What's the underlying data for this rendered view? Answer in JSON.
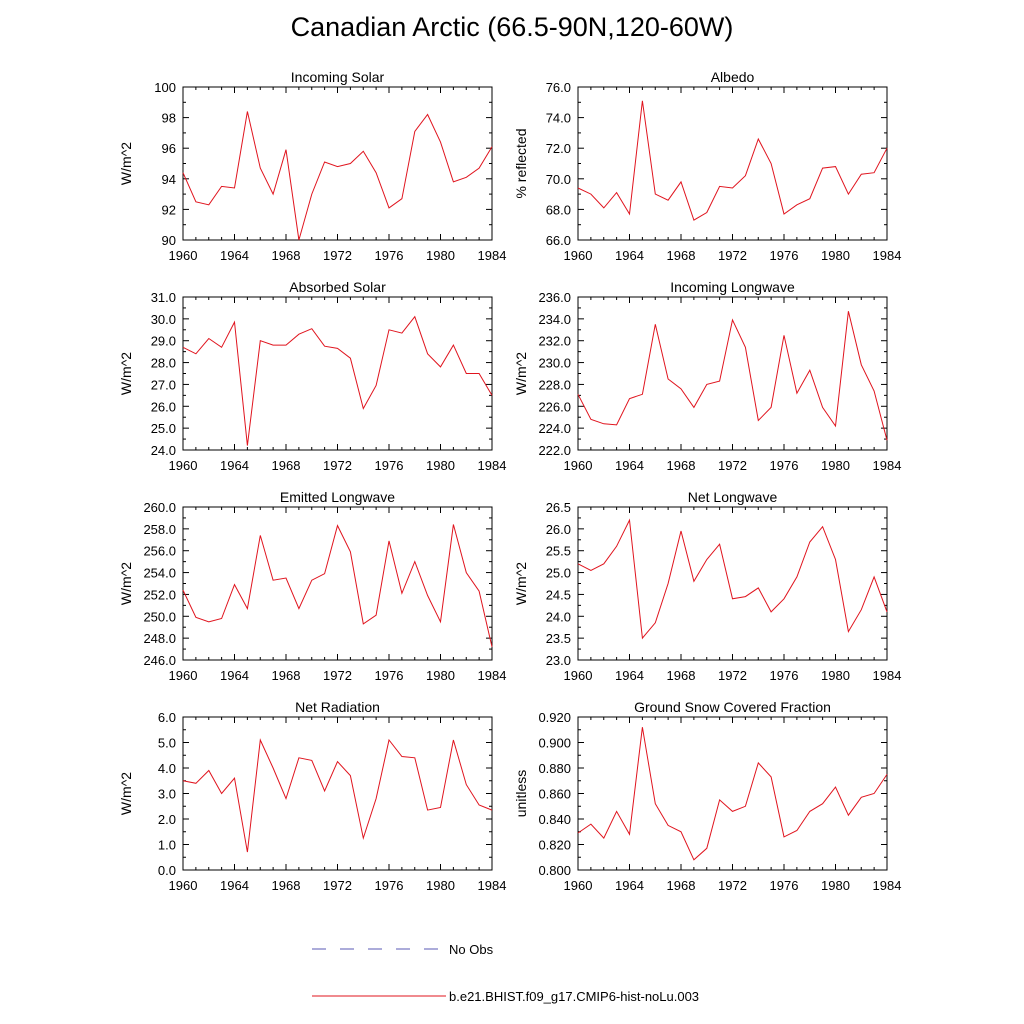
{
  "figure": {
    "title": "Canadian Arctic (66.5-90N,120-60W)"
  },
  "legend": [
    {
      "label": "No Obs",
      "color": "#5a5ab4",
      "style": "dashed"
    },
    {
      "label": "b.e21.BHIST.f09_g17.CMIP6-hist-noLu.003",
      "color": "#e0141e",
      "style": "solid"
    }
  ],
  "chart_data": [
    {
      "type": "line",
      "title": "Incoming Solar",
      "ylabel": "W/m^2",
      "xlim": [
        1960,
        1984
      ],
      "ylim": [
        90,
        100
      ],
      "yticks": [
        "90",
        "92",
        "94",
        "96",
        "98",
        "100"
      ],
      "xticks": [
        "1960",
        "1964",
        "1968",
        "1972",
        "1976",
        "1980",
        "1984"
      ],
      "series": [
        {
          "x": [
            1960,
            1961,
            1962,
            1963,
            1964,
            1965,
            1966,
            1967,
            1968,
            1969,
            1970,
            1971,
            1972,
            1973,
            1974,
            1975,
            1976,
            1977,
            1978,
            1979,
            1980,
            1981,
            1982,
            1983,
            1984
          ],
          "values": [
            94.4,
            92.5,
            92.3,
            93.5,
            93.4,
            98.4,
            94.7,
            93.0,
            95.9,
            90.0,
            93.0,
            95.1,
            94.8,
            95.0,
            95.8,
            94.4,
            92.1,
            92.7,
            97.1,
            98.2,
            96.4,
            93.8,
            94.1,
            94.7,
            96.1
          ]
        }
      ]
    },
    {
      "type": "line",
      "title": "Albedo",
      "ylabel": "% reflected",
      "xlim": [
        1960,
        1984
      ],
      "ylim": [
        66,
        76
      ],
      "yticks": [
        "66.0",
        "68.0",
        "70.0",
        "72.0",
        "74.0",
        "76.0"
      ],
      "xticks": [
        "1960",
        "1964",
        "1968",
        "1972",
        "1976",
        "1980",
        "1984"
      ],
      "series": [
        {
          "x": [
            1960,
            1961,
            1962,
            1963,
            1964,
            1965,
            1966,
            1967,
            1968,
            1969,
            1970,
            1971,
            1972,
            1973,
            1974,
            1975,
            1976,
            1977,
            1978,
            1979,
            1980,
            1981,
            1982,
            1983,
            1984
          ],
          "values": [
            69.4,
            69.0,
            68.1,
            69.1,
            67.7,
            75.1,
            69.0,
            68.6,
            69.8,
            67.3,
            67.8,
            69.5,
            69.4,
            70.2,
            72.6,
            71.0,
            67.7,
            68.3,
            68.7,
            70.7,
            70.8,
            69.0,
            70.3,
            70.4,
            72.0
          ]
        }
      ]
    },
    {
      "type": "line",
      "title": "Absorbed Solar",
      "ylabel": "W/m^2",
      "xlim": [
        1960,
        1984
      ],
      "ylim": [
        24,
        31
      ],
      "yticks": [
        "24.0",
        "25.0",
        "26.0",
        "27.0",
        "28.0",
        "29.0",
        "30.0",
        "31.0"
      ],
      "xticks": [
        "1960",
        "1964",
        "1968",
        "1972",
        "1976",
        "1980",
        "1984"
      ],
      "series": [
        {
          "x": [
            1960,
            1961,
            1962,
            1963,
            1964,
            1965,
            1966,
            1967,
            1968,
            1969,
            1970,
            1971,
            1972,
            1973,
            1974,
            1975,
            1976,
            1977,
            1978,
            1979,
            1980,
            1981,
            1982,
            1983,
            1984
          ],
          "values": [
            28.7,
            28.4,
            29.1,
            28.7,
            29.85,
            24.2,
            29.0,
            28.8,
            28.8,
            29.3,
            29.55,
            28.75,
            28.65,
            28.2,
            25.9,
            26.95,
            29.5,
            29.35,
            30.1,
            28.4,
            27.8,
            28.8,
            27.5,
            27.5,
            26.5
          ]
        }
      ]
    },
    {
      "type": "line",
      "title": "Incoming Longwave",
      "ylabel": "W/m^2",
      "xlim": [
        1960,
        1984
      ],
      "ylim": [
        222,
        236
      ],
      "yticks": [
        "222.0",
        "224.0",
        "226.0",
        "228.0",
        "230.0",
        "232.0",
        "234.0",
        "236.0"
      ],
      "xticks": [
        "1960",
        "1964",
        "1968",
        "1972",
        "1976",
        "1980",
        "1984"
      ],
      "series": [
        {
          "x": [
            1960,
            1961,
            1962,
            1963,
            1964,
            1965,
            1966,
            1967,
            1968,
            1969,
            1970,
            1971,
            1972,
            1973,
            1974,
            1975,
            1976,
            1977,
            1978,
            1979,
            1980,
            1981,
            1982,
            1983,
            1984
          ],
          "values": [
            227.1,
            224.8,
            224.4,
            224.3,
            226.7,
            227.1,
            233.5,
            228.5,
            227.6,
            225.9,
            228.0,
            228.3,
            233.9,
            231.4,
            224.7,
            225.9,
            232.5,
            227.2,
            229.3,
            225.9,
            224.2,
            234.7,
            229.8,
            227.4,
            222.9
          ]
        }
      ]
    },
    {
      "type": "line",
      "title": "Emitted Longwave",
      "ylabel": "W/m^2",
      "xlim": [
        1960,
        1984
      ],
      "ylim": [
        246,
        260
      ],
      "yticks": [
        "246.0",
        "248.0",
        "250.0",
        "252.0",
        "254.0",
        "256.0",
        "258.0",
        "260.0"
      ],
      "xticks": [
        "1960",
        "1964",
        "1968",
        "1972",
        "1976",
        "1980",
        "1984"
      ],
      "series": [
        {
          "x": [
            1960,
            1961,
            1962,
            1963,
            1964,
            1965,
            1966,
            1967,
            1968,
            1969,
            1970,
            1971,
            1972,
            1973,
            1974,
            1975,
            1976,
            1977,
            1978,
            1979,
            1980,
            1981,
            1982,
            1983,
            1984
          ],
          "values": [
            252.4,
            249.9,
            249.5,
            249.8,
            252.9,
            250.7,
            257.4,
            253.3,
            253.5,
            250.7,
            253.3,
            253.9,
            258.3,
            255.9,
            249.3,
            250.1,
            256.9,
            252.1,
            255.0,
            251.9,
            249.5,
            258.4,
            254.0,
            252.3,
            247.2
          ]
        }
      ]
    },
    {
      "type": "line",
      "title": "Net Longwave",
      "ylabel": "W/m^2",
      "xlim": [
        1960,
        1984
      ],
      "ylim": [
        23,
        26.5
      ],
      "yticks": [
        "23.0",
        "23.5",
        "24.0",
        "24.5",
        "25.0",
        "25.5",
        "26.0",
        "26.5"
      ],
      "xticks": [
        "1960",
        "1964",
        "1968",
        "1972",
        "1976",
        "1980",
        "1984"
      ],
      "series": [
        {
          "x": [
            1960,
            1961,
            1962,
            1963,
            1964,
            1965,
            1966,
            1967,
            1968,
            1969,
            1970,
            1971,
            1972,
            1973,
            1974,
            1975,
            1976,
            1977,
            1978,
            1979,
            1980,
            1981,
            1982,
            1983,
            1984
          ],
          "values": [
            25.2,
            25.05,
            25.2,
            25.6,
            26.2,
            23.5,
            23.85,
            24.75,
            25.95,
            24.8,
            25.3,
            25.65,
            24.4,
            24.45,
            24.65,
            24.1,
            24.4,
            24.9,
            25.7,
            26.05,
            25.3,
            23.65,
            24.15,
            24.9,
            24.1
          ]
        }
      ]
    },
    {
      "type": "line",
      "title": "Net Radiation",
      "ylabel": "W/m^2",
      "xlim": [
        1960,
        1984
      ],
      "ylim": [
        0,
        6
      ],
      "yticks": [
        "0.0",
        "1.0",
        "2.0",
        "3.0",
        "4.0",
        "5.0",
        "6.0"
      ],
      "xticks": [
        "1960",
        "1964",
        "1968",
        "1972",
        "1976",
        "1980",
        "1984"
      ],
      "series": [
        {
          "x": [
            1960,
            1961,
            1962,
            1963,
            1964,
            1965,
            1966,
            1967,
            1968,
            1969,
            1970,
            1971,
            1972,
            1973,
            1974,
            1975,
            1976,
            1977,
            1978,
            1979,
            1980,
            1981,
            1982,
            1983,
            1984
          ],
          "values": [
            3.5,
            3.4,
            3.9,
            3.0,
            3.6,
            0.7,
            5.1,
            4.0,
            2.8,
            4.4,
            4.3,
            3.1,
            4.25,
            3.7,
            1.25,
            2.8,
            5.1,
            4.45,
            4.4,
            2.35,
            2.45,
            5.1,
            3.35,
            2.55,
            2.35
          ]
        }
      ]
    },
    {
      "type": "line",
      "title": "Ground Snow Covered Fraction",
      "ylabel": "unitless",
      "xlim": [
        1960,
        1984
      ],
      "ylim": [
        0.8,
        0.92
      ],
      "yticks": [
        "0.800",
        "0.820",
        "0.840",
        "0.860",
        "0.880",
        "0.900",
        "0.920"
      ],
      "xticks": [
        "1960",
        "1964",
        "1968",
        "1972",
        "1976",
        "1980",
        "1984"
      ],
      "series": [
        {
          "x": [
            1960,
            1961,
            1962,
            1963,
            1964,
            1965,
            1966,
            1967,
            1968,
            1969,
            1970,
            1971,
            1972,
            1973,
            1974,
            1975,
            1976,
            1977,
            1978,
            1979,
            1980,
            1981,
            1982,
            1983,
            1984
          ],
          "values": [
            0.829,
            0.836,
            0.825,
            0.846,
            0.828,
            0.912,
            0.852,
            0.835,
            0.83,
            0.808,
            0.817,
            0.855,
            0.846,
            0.85,
            0.884,
            0.873,
            0.826,
            0.831,
            0.846,
            0.852,
            0.865,
            0.843,
            0.857,
            0.86,
            0.875
          ]
        }
      ]
    }
  ]
}
